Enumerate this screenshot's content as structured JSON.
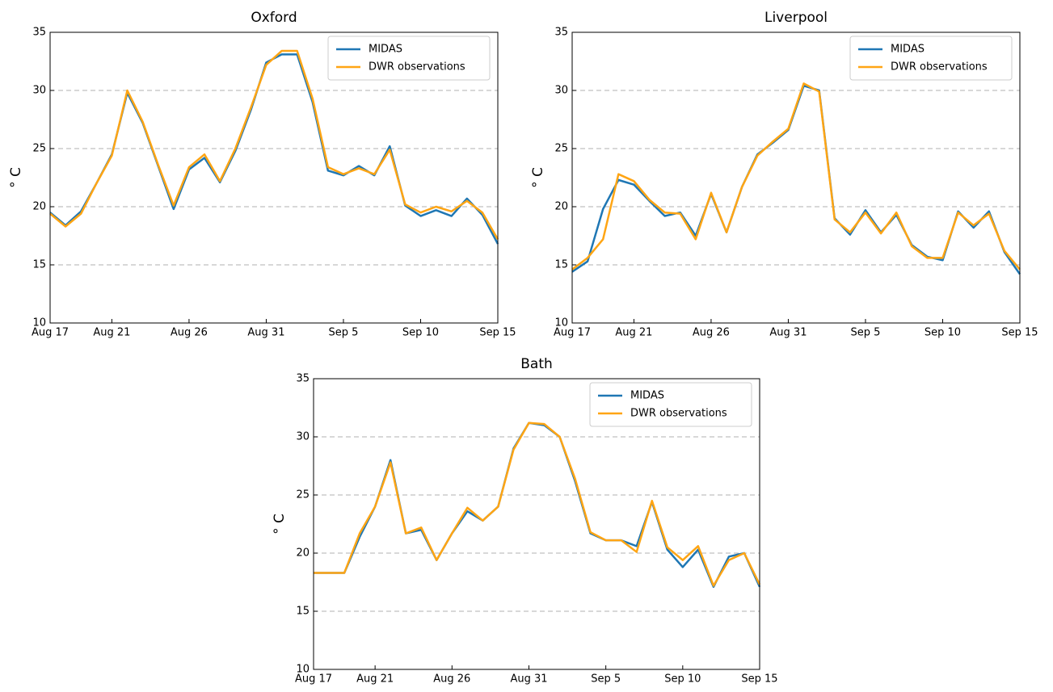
{
  "chart_data": [
    {
      "type": "line",
      "title": "Oxford",
      "ylabel": "° C",
      "x": [
        "Aug 17",
        "Aug 18",
        "Aug 19",
        "Aug 20",
        "Aug 21",
        "Aug 22",
        "Aug 23",
        "Aug 24",
        "Aug 25",
        "Aug 26",
        "Aug 27",
        "Aug 28",
        "Aug 29",
        "Aug 30",
        "Aug 31",
        "Sep 1",
        "Sep 2",
        "Sep 3",
        "Sep 4",
        "Sep 5",
        "Sep 6",
        "Sep 7",
        "Sep 8",
        "Sep 9",
        "Sep 10",
        "Sep 11",
        "Sep 12",
        "Sep 13",
        "Sep 14",
        "Sep 15"
      ],
      "xticks": [
        "Aug 17",
        "Aug 21",
        "Aug 26",
        "Aug 31",
        "Sep 5",
        "Sep 10",
        "Sep 15"
      ],
      "series": [
        {
          "name": "MIDAS",
          "color": "#1f77b4",
          "values": [
            19.5,
            18.4,
            19.6,
            22.0,
            24.5,
            29.8,
            27.2,
            23.5,
            19.8,
            23.2,
            24.2,
            22.1,
            24.8,
            28.3,
            32.4,
            33.1,
            33.1,
            29.0,
            23.1,
            22.7,
            23.5,
            22.7,
            25.2,
            20.1,
            19.2,
            19.7,
            19.2,
            20.7,
            19.3,
            16.8
          ]
        },
        {
          "name": "DWR observations",
          "color": "#ffa514",
          "values": [
            19.4,
            18.3,
            19.4,
            22.0,
            24.4,
            30.0,
            27.3,
            23.6,
            20.1,
            23.4,
            24.5,
            22.2,
            25.0,
            28.5,
            32.2,
            33.4,
            33.4,
            29.3,
            23.4,
            22.8,
            23.3,
            22.8,
            24.9,
            20.2,
            19.5,
            20.0,
            19.6,
            20.5,
            19.5,
            17.2
          ]
        }
      ],
      "ylim": [
        10,
        35
      ],
      "yticks": [
        10,
        15,
        20,
        25,
        30,
        35
      ],
      "grid": true,
      "legend": "upper right"
    },
    {
      "type": "line",
      "title": "Liverpool",
      "ylabel": "° C",
      "x": [
        "Aug 17",
        "Aug 18",
        "Aug 19",
        "Aug 20",
        "Aug 21",
        "Aug 22",
        "Aug 23",
        "Aug 24",
        "Aug 25",
        "Aug 26",
        "Aug 27",
        "Aug 28",
        "Aug 29",
        "Aug 30",
        "Aug 31",
        "Sep 1",
        "Sep 2",
        "Sep 3",
        "Sep 4",
        "Sep 5",
        "Sep 6",
        "Sep 7",
        "Sep 8",
        "Sep 9",
        "Sep 10",
        "Sep 11",
        "Sep 12",
        "Sep 13",
        "Sep 14",
        "Sep 15"
      ],
      "xticks": [
        "Aug 17",
        "Aug 21",
        "Aug 26",
        "Aug 31",
        "Sep 5",
        "Sep 10",
        "Sep 15"
      ],
      "series": [
        {
          "name": "MIDAS",
          "color": "#1f77b4",
          "values": [
            14.4,
            15.3,
            19.8,
            22.3,
            21.9,
            20.5,
            19.2,
            19.5,
            17.5,
            21.1,
            17.8,
            21.7,
            24.5,
            25.5,
            26.6,
            30.4,
            30.0,
            19.0,
            17.6,
            19.7,
            17.8,
            19.3,
            16.7,
            15.7,
            15.4,
            19.6,
            18.2,
            19.6,
            16.1,
            14.2
          ]
        },
        {
          "name": "DWR observations",
          "color": "#ffa514",
          "values": [
            14.6,
            15.6,
            17.2,
            22.8,
            22.2,
            20.6,
            19.5,
            19.4,
            17.2,
            21.2,
            17.8,
            21.7,
            24.4,
            25.6,
            26.7,
            30.6,
            29.9,
            18.9,
            17.8,
            19.5,
            17.7,
            19.5,
            16.6,
            15.6,
            15.6,
            19.5,
            18.4,
            19.4,
            16.2,
            14.6
          ]
        }
      ],
      "ylim": [
        10,
        35
      ],
      "yticks": [
        10,
        15,
        20,
        25,
        30,
        35
      ],
      "grid": true,
      "legend": "upper right"
    },
    {
      "type": "line",
      "title": "Bath",
      "ylabel": "° C",
      "x": [
        "Aug 17",
        "Aug 18",
        "Aug 19",
        "Aug 20",
        "Aug 21",
        "Aug 22",
        "Aug 23",
        "Aug 24",
        "Aug 25",
        "Aug 26",
        "Aug 27",
        "Aug 28",
        "Aug 29",
        "Aug 30",
        "Aug 31",
        "Sep 1",
        "Sep 2",
        "Sep 3",
        "Sep 4",
        "Sep 5",
        "Sep 6",
        "Sep 7",
        "Sep 8",
        "Sep 9",
        "Sep 10",
        "Sep 11",
        "Sep 12",
        "Sep 13",
        "Sep 14",
        "Sep 15"
      ],
      "xticks": [
        "Aug 17",
        "Aug 21",
        "Aug 26",
        "Aug 31",
        "Sep 5",
        "Sep 10",
        "Sep 15"
      ],
      "series": [
        {
          "name": "MIDAS",
          "color": "#1f77b4",
          "values": [
            18.3,
            18.3,
            18.3,
            21.4,
            24.0,
            28.0,
            21.7,
            22.0,
            19.4,
            21.7,
            23.6,
            22.8,
            24.0,
            29.0,
            31.2,
            31.0,
            30.0,
            26.2,
            21.7,
            21.1,
            21.1,
            20.6,
            24.4,
            20.3,
            18.8,
            20.3,
            17.1,
            19.7,
            20.0,
            17.1
          ]
        },
        {
          "name": "DWR observations",
          "color": "#ffa514",
          "values": [
            18.3,
            18.3,
            18.3,
            21.7,
            24.0,
            27.8,
            21.7,
            22.2,
            19.4,
            21.7,
            23.9,
            22.8,
            24.0,
            28.9,
            31.2,
            31.1,
            30.0,
            26.4,
            21.8,
            21.1,
            21.1,
            20.1,
            24.5,
            20.5,
            19.4,
            20.6,
            17.2,
            19.4,
            20.0,
            17.3
          ]
        }
      ],
      "ylim": [
        10,
        35
      ],
      "yticks": [
        10,
        15,
        20,
        25,
        30,
        35
      ],
      "grid": true,
      "legend": "upper right"
    }
  ]
}
